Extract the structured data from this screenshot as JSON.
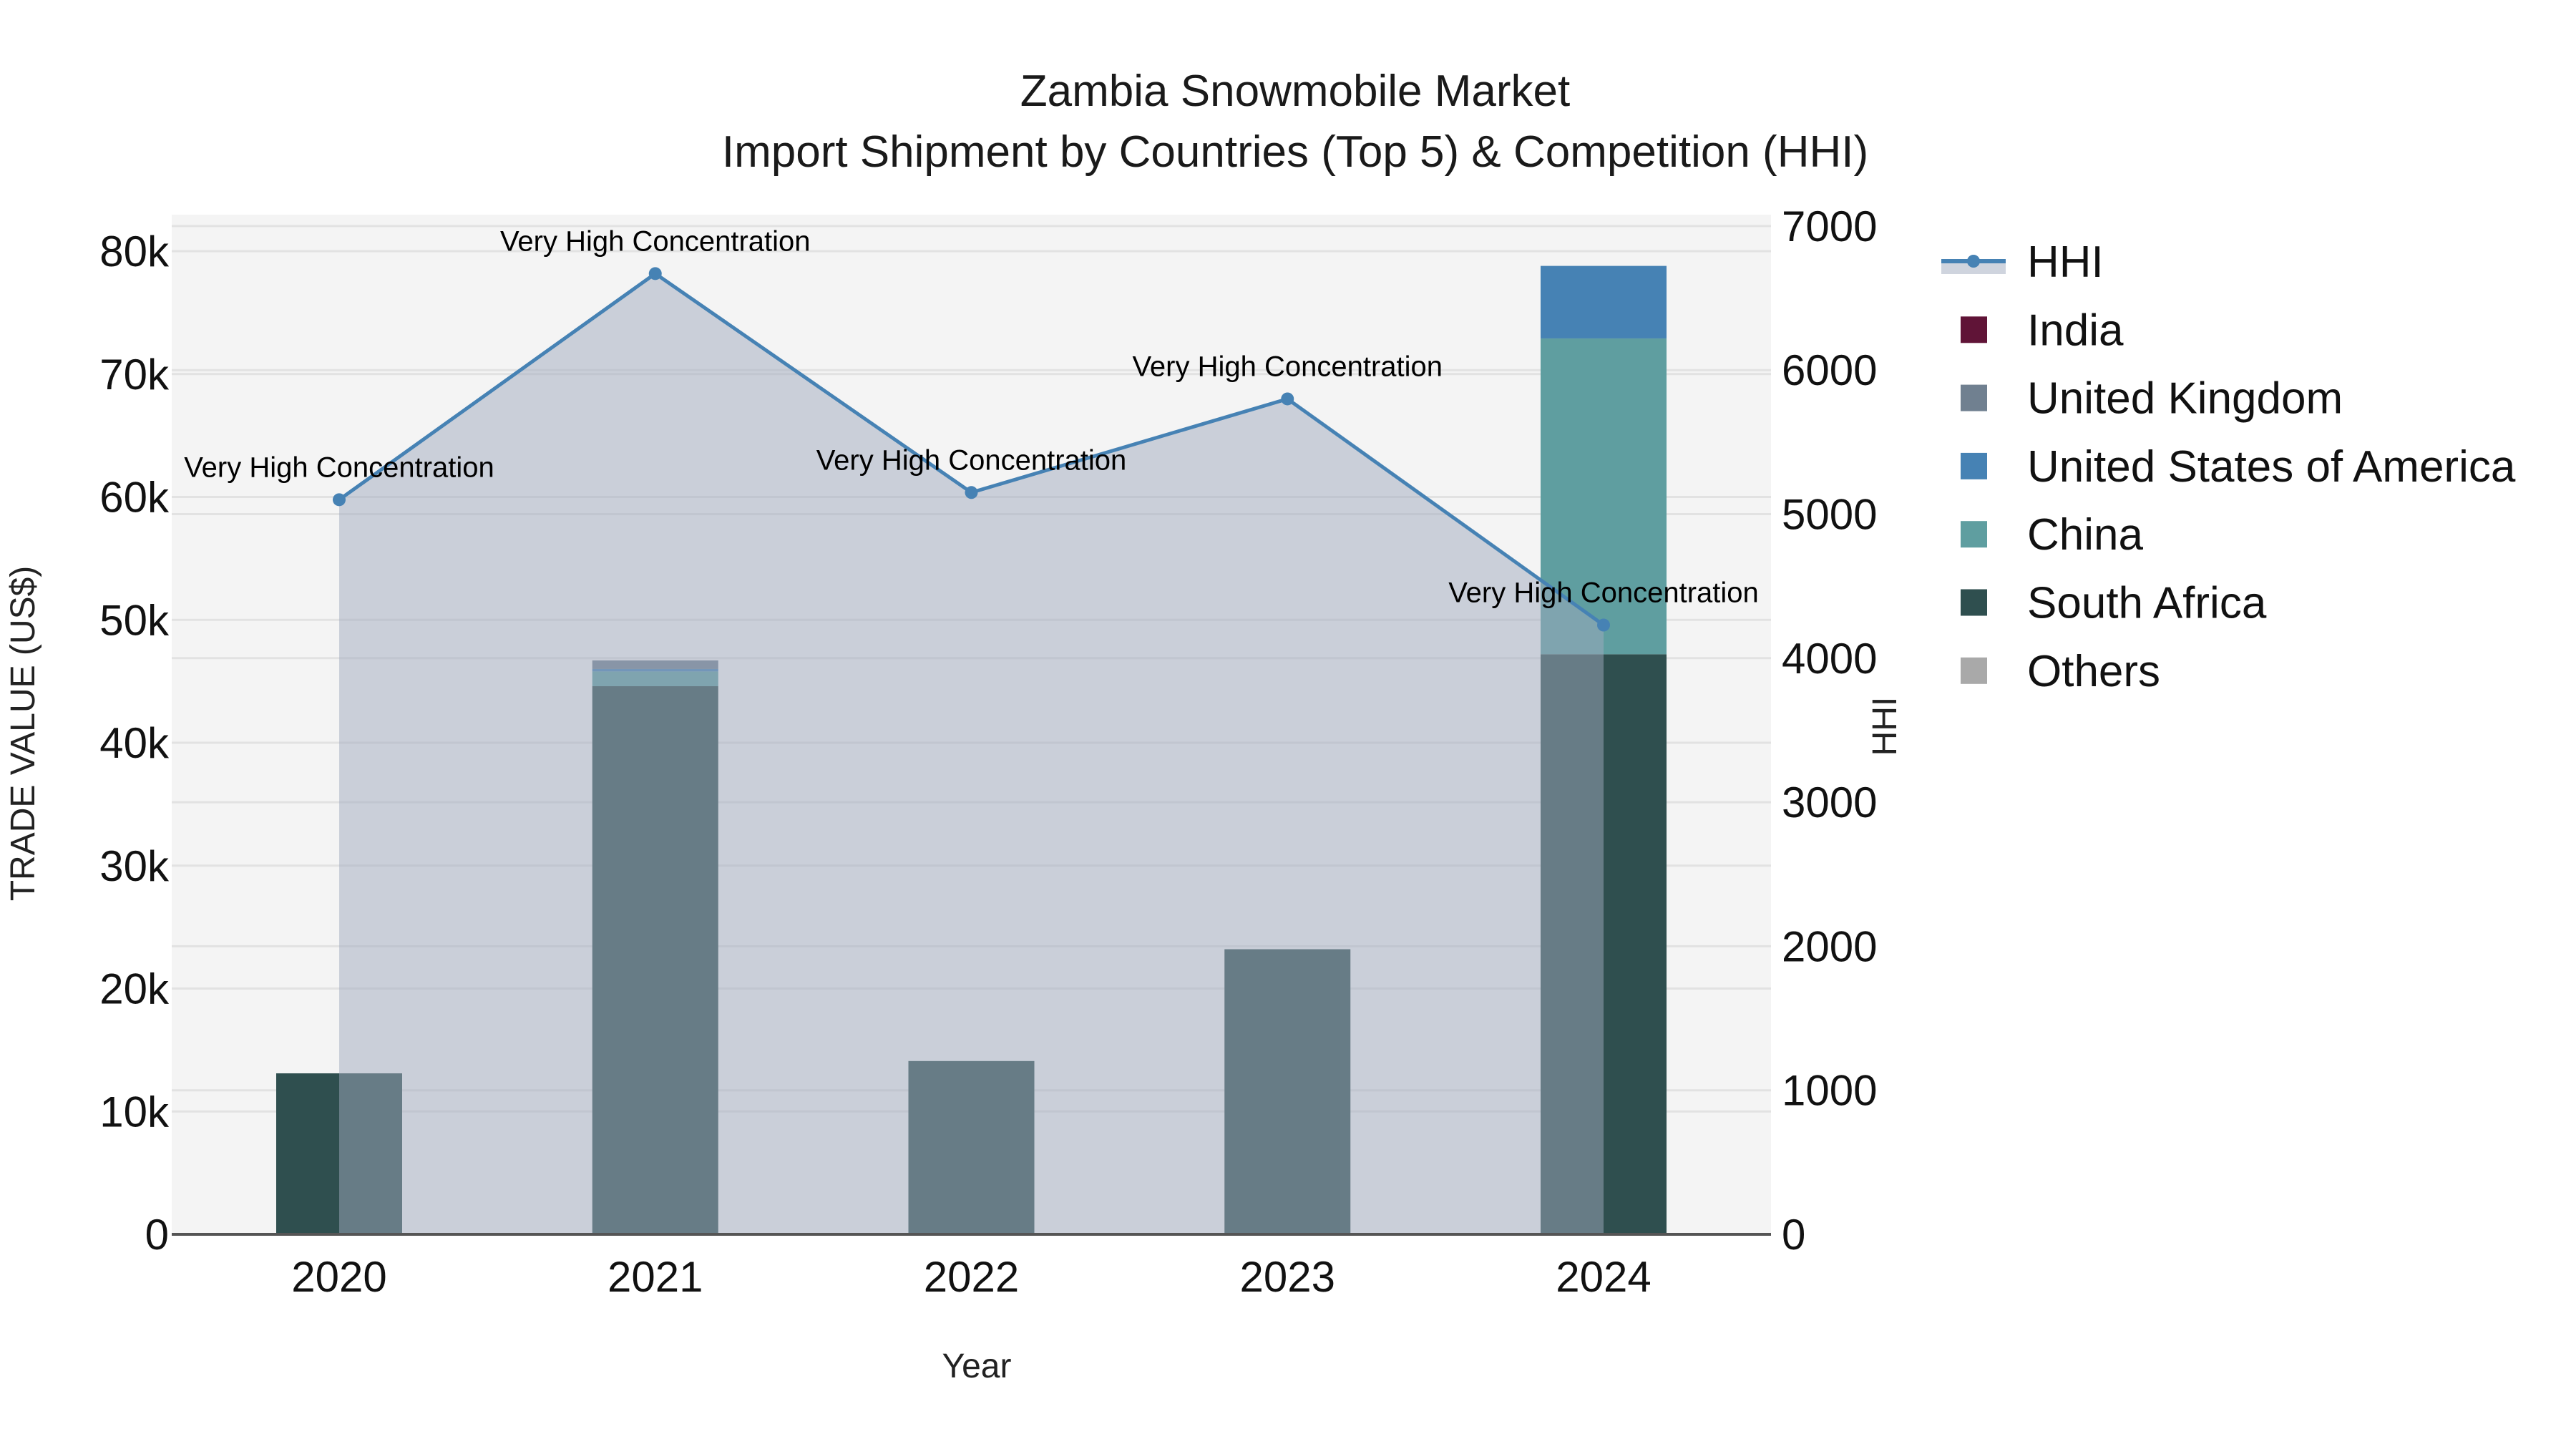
{
  "title": {
    "line1": "Zambia Snowmobile Market",
    "line2": "Import Shipment by Countries (Top 5) & Competition (HHI)"
  },
  "axes": {
    "x_title": "Year",
    "y_left_title": "TRADE VALUE (US$)",
    "y_right_title": "HHI",
    "y_left_ticks": [
      "0",
      "10k",
      "20k",
      "30k",
      "40k",
      "50k",
      "60k",
      "70k",
      "80k"
    ],
    "y_right_ticks": [
      "0",
      "1000",
      "2000",
      "3000",
      "4000",
      "5000",
      "6000",
      "7000"
    ]
  },
  "legend": {
    "items": [
      {
        "label": "HHI",
        "type": "line",
        "color": "#4682B4"
      },
      {
        "label": "India",
        "type": "box",
        "color": "#601437"
      },
      {
        "label": "United Kingdom",
        "type": "box",
        "color": "#708090"
      },
      {
        "label": "United States of America",
        "type": "box",
        "color": "#4682B4"
      },
      {
        "label": "China",
        "type": "box",
        "color": "#5F9EA0"
      },
      {
        "label": "South Africa",
        "type": "box",
        "color": "#2F4F4F"
      },
      {
        "label": "Others",
        "type": "box",
        "color": "#A9A9A9"
      }
    ]
  },
  "colors": {
    "plot_bg": "#F4F4F4",
    "grid": "#E2E2E2",
    "hhi_line": "#4682B4",
    "hhi_fill": "rgba(160,170,190,0.5)",
    "axis_line": "#555555"
  },
  "chart_data": {
    "type": "bar",
    "stacked": true,
    "title": "Zambia Snowmobile Market — Import Shipment by Countries (Top 5) & Competition (HHI)",
    "xlabel": "Year",
    "ylabel": "TRADE VALUE (US$)",
    "y2label": "HHI",
    "categories": [
      "2020",
      "2021",
      "2022",
      "2023",
      "2024"
    ],
    "ylim": [
      0,
      82500
    ],
    "y2lim": [
      0,
      7075
    ],
    "series": [
      {
        "name": "South Africa",
        "color": "#2F4F4F",
        "values": [
          13100,
          44600,
          14100,
          23200,
          47200
        ]
      },
      {
        "name": "China",
        "color": "#5F9EA0",
        "values": [
          0,
          1200,
          0,
          0,
          25700
        ]
      },
      {
        "name": "United States of America",
        "color": "#4682B4",
        "values": [
          0,
          200,
          0,
          0,
          5900
        ]
      },
      {
        "name": "United Kingdom",
        "color": "#708090",
        "values": [
          0,
          700,
          0,
          0,
          0
        ]
      },
      {
        "name": "India",
        "color": "#601437",
        "values": [
          0,
          0,
          0,
          0,
          0
        ]
      },
      {
        "name": "Others",
        "color": "#A9A9A9",
        "values": [
          0,
          0,
          0,
          0,
          0
        ]
      }
    ],
    "hhi": {
      "name": "HHI",
      "axis": "right",
      "type": "line+area",
      "values": [
        5100,
        6670,
        5150,
        5800,
        4230
      ],
      "annotations": [
        "Very High Concentration",
        "Very High Concentration",
        "Very High Concentration",
        "Very High Concentration",
        "Very High Concentration"
      ]
    },
    "legend_position": "right",
    "grid": true
  }
}
